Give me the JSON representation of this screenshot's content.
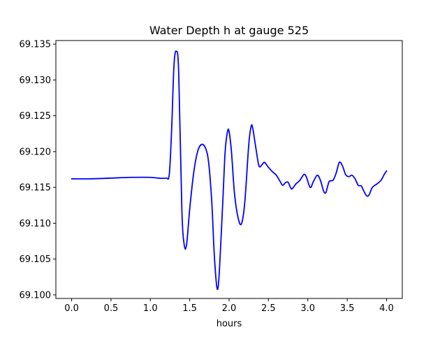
{
  "chart_data": {
    "type": "line",
    "title": "Water Depth h at gauge 525",
    "xlabel": "hours",
    "ylabel": "",
    "xlim": [
      -0.2,
      4.2
    ],
    "ylim": [
      69.0995,
      69.1355
    ],
    "grid": false,
    "x_ticks": [
      "0.0",
      "0.5",
      "1.0",
      "1.5",
      "2.0",
      "2.5",
      "3.0",
      "3.5",
      "4.0"
    ],
    "y_ticks": [
      "69.100",
      "69.105",
      "69.110",
      "69.115",
      "69.120",
      "69.125",
      "69.130",
      "69.135"
    ],
    "series": [
      {
        "color": "#0000ff",
        "points": [
          [
            0.0,
            69.1162
          ],
          [
            0.25,
            69.1162
          ],
          [
            0.5,
            69.1163
          ],
          [
            0.75,
            69.1164
          ],
          [
            1.0,
            69.1164
          ],
          [
            1.1,
            69.1163
          ],
          [
            1.2,
            69.1163
          ],
          [
            1.24,
            69.1168
          ],
          [
            1.27,
            69.123
          ],
          [
            1.3,
            69.132
          ],
          [
            1.33,
            69.134
          ],
          [
            1.36,
            69.131
          ],
          [
            1.4,
            69.112
          ],
          [
            1.43,
            69.107
          ],
          [
            1.46,
            69.107
          ],
          [
            1.5,
            69.112
          ],
          [
            1.55,
            69.117
          ],
          [
            1.6,
            69.12
          ],
          [
            1.65,
            69.121
          ],
          [
            1.7,
            69.1205
          ],
          [
            1.74,
            69.1185
          ],
          [
            1.78,
            69.113
          ],
          [
            1.81,
            69.106
          ],
          [
            1.84,
            69.1015
          ],
          [
            1.86,
            69.101
          ],
          [
            1.88,
            69.104
          ],
          [
            1.92,
            69.113
          ],
          [
            1.95,
            69.12
          ],
          [
            1.98,
            69.1228
          ],
          [
            2.0,
            69.1228
          ],
          [
            2.03,
            69.12
          ],
          [
            2.07,
            69.114
          ],
          [
            2.12,
            69.1105
          ],
          [
            2.16,
            69.11
          ],
          [
            2.2,
            69.113
          ],
          [
            2.25,
            69.121
          ],
          [
            2.28,
            69.1235
          ],
          [
            2.3,
            69.1233
          ],
          [
            2.34,
            69.1205
          ],
          [
            2.38,
            69.118
          ],
          [
            2.42,
            69.1182
          ],
          [
            2.45,
            69.1185
          ],
          [
            2.5,
            69.1178
          ],
          [
            2.55,
            69.1172
          ],
          [
            2.6,
            69.1167
          ],
          [
            2.65,
            69.1158
          ],
          [
            2.68,
            69.1153
          ],
          [
            2.72,
            69.1157
          ],
          [
            2.75,
            69.1157
          ],
          [
            2.78,
            69.115
          ],
          [
            2.8,
            69.1148
          ],
          [
            2.85,
            69.1155
          ],
          [
            2.9,
            69.116
          ],
          [
            2.95,
            69.1168
          ],
          [
            2.98,
            69.1165
          ],
          [
            3.03,
            69.115
          ],
          [
            3.07,
            69.1158
          ],
          [
            3.12,
            69.1167
          ],
          [
            3.16,
            69.116
          ],
          [
            3.2,
            69.1145
          ],
          [
            3.23,
            69.1143
          ],
          [
            3.27,
            69.1158
          ],
          [
            3.32,
            69.116
          ],
          [
            3.36,
            69.117
          ],
          [
            3.4,
            69.1185
          ],
          [
            3.44,
            69.118
          ],
          [
            3.48,
            69.1168
          ],
          [
            3.52,
            69.1165
          ],
          [
            3.56,
            69.1167
          ],
          [
            3.6,
            69.1162
          ],
          [
            3.64,
            69.1153
          ],
          [
            3.68,
            69.1152
          ],
          [
            3.71,
            69.1145
          ],
          [
            3.75,
            69.1138
          ],
          [
            3.78,
            69.114
          ],
          [
            3.82,
            69.115
          ],
          [
            3.88,
            69.1155
          ],
          [
            3.93,
            69.116
          ],
          [
            3.97,
            69.1168
          ],
          [
            4.0,
            69.1173
          ]
        ]
      }
    ]
  }
}
